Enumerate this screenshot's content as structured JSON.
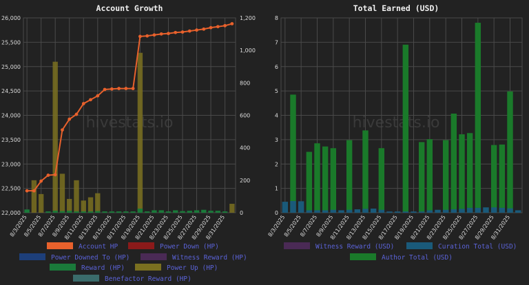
{
  "colors": {
    "account_hp": "#e8612c",
    "power_down": "#8b1a1a",
    "power_downed_to": "#1d3f7a",
    "witness_reward_hp": "#4a2a55",
    "reward": "#1a7a3a",
    "power_up": "#7a7020",
    "benefactor": "#3a6b6b",
    "witness_reward_usd": "#4a2a55",
    "curation_total": "#1a5a7a",
    "author_total": "#1a7a2a"
  },
  "watermark": "hivestats.io",
  "chart_data": [
    {
      "type": "bar",
      "title": "Account Growth",
      "categories": [
        "8/3/2025",
        "8/4/2025",
        "8/5/2025",
        "8/6/2025",
        "8/7/2025",
        "8/8/2025",
        "8/9/2025",
        "8/10/2025",
        "8/11/2025",
        "8/12/2025",
        "8/13/2025",
        "8/14/2025",
        "8/15/2025",
        "8/16/2025",
        "8/17/2025",
        "8/18/2025",
        "8/19/2025",
        "8/20/2025",
        "8/21/2025",
        "8/22/2025",
        "8/23/2025",
        "8/24/2025",
        "8/25/2025",
        "8/26/2025",
        "8/27/2025",
        "8/28/2025",
        "8/29/2025",
        "8/30/2025",
        "8/31/2025",
        "9/1/2025"
      ],
      "x_tick_labels": [
        "8/3/2025",
        "8/5/2025",
        "8/7/2025",
        "8/9/2025",
        "8/11/2025",
        "8/13/2025",
        "8/15/2025",
        "8/17/2025",
        "8/19/2025",
        "8/21/2025",
        "8/23/2025",
        "8/25/2025",
        "8/27/2025",
        "8/29/2025",
        "8/31/2025"
      ],
      "y_left": {
        "min": 22000,
        "max": 26000,
        "ticks": [
          "22,000",
          "22,500",
          "23,000",
          "23,500",
          "24,000",
          "24,500",
          "25,000",
          "25,500",
          "26,000"
        ]
      },
      "y_right": {
        "min": 0,
        "max": 1200,
        "ticks": [
          "0",
          "200",
          "400",
          "600",
          "800",
          "1,000",
          "1,200"
        ]
      },
      "series": [
        {
          "name": "Account HP",
          "kind": "line",
          "axis": "left",
          "values": [
            22450,
            22450,
            22650,
            22770,
            22780,
            23700,
            23920,
            24020,
            24240,
            24320,
            24400,
            24530,
            24540,
            24550,
            24550,
            24550,
            25620,
            25630,
            25650,
            25670,
            25680,
            25700,
            25710,
            25730,
            25750,
            25770,
            25800,
            25820,
            25840,
            25880
          ]
        },
        {
          "name": "Power Up (HP)",
          "kind": "bar",
          "axis": "right",
          "values": [
            0,
            200,
            115,
            0,
            930,
            240,
            85,
            200,
            75,
            95,
            120,
            0,
            0,
            0,
            0,
            0,
            985,
            0,
            0,
            0,
            0,
            0,
            0,
            0,
            0,
            0,
            0,
            0,
            0,
            55
          ]
        },
        {
          "name": "Reward (HP)",
          "kind": "bar",
          "axis": "right",
          "values": [
            20,
            0,
            0,
            8,
            12,
            10,
            12,
            8,
            8,
            8,
            10,
            8,
            8,
            8,
            8,
            8,
            25,
            8,
            15,
            15,
            8,
            15,
            10,
            12,
            15,
            18,
            12,
            12,
            8,
            0
          ]
        }
      ],
      "legend": [
        {
          "label": "Account HP",
          "color_key": "account_hp"
        },
        {
          "label": "Power Down (HP)",
          "color_key": "power_down"
        },
        {
          "label": "Power Downed To (HP)",
          "color_key": "power_downed_to"
        },
        {
          "label": "Witness Reward (HP)",
          "color_key": "witness_reward_hp"
        },
        {
          "label": "Reward (HP)",
          "color_key": "reward"
        },
        {
          "label": "Power Up (HP)",
          "color_key": "power_up"
        },
        {
          "label": "Benefactor Reward (HP)",
          "color_key": "benefactor"
        }
      ],
      "grid": true
    },
    {
      "type": "bar",
      "title": "Total Earned (USD)",
      "categories": [
        "8/3/2025",
        "8/4/2025",
        "8/5/2025",
        "8/6/2025",
        "8/7/2025",
        "8/8/2025",
        "8/9/2025",
        "8/10/2025",
        "8/11/2025",
        "8/12/2025",
        "8/13/2025",
        "8/14/2025",
        "8/15/2025",
        "8/16/2025",
        "8/17/2025",
        "8/18/2025",
        "8/19/2025",
        "8/20/2025",
        "8/21/2025",
        "8/22/2025",
        "8/23/2025",
        "8/24/2025",
        "8/25/2025",
        "8/26/2025",
        "8/27/2025",
        "8/28/2025",
        "8/29/2025",
        "8/30/2025",
        "8/31/2025",
        "9/1/2025"
      ],
      "x_tick_labels": [
        "8/3/2025",
        "8/5/2025",
        "8/7/2025",
        "8/9/2025",
        "8/11/2025",
        "8/13/2025",
        "8/15/2025",
        "8/17/2025",
        "8/19/2025",
        "8/21/2025",
        "8/23/2025",
        "8/25/2025",
        "8/27/2025",
        "8/29/2025",
        "8/31/2025"
      ],
      "y_left": {
        "min": 0,
        "max": 8,
        "ticks": [
          "0",
          "1",
          "2",
          "3",
          "4",
          "5",
          "6",
          "7",
          "8"
        ]
      },
      "series": [
        {
          "name": "Curation Total (USD)",
          "kind": "bar",
          "values": [
            0.45,
            0.48,
            0.47,
            0.1,
            0.1,
            0.1,
            0.12,
            0.1,
            0.12,
            0.14,
            0.16,
            0.17,
            0.12,
            0.05,
            0.05,
            0.05,
            0.05,
            0.05,
            0.1,
            0.12,
            0.12,
            0.14,
            0.16,
            0.2,
            0.2,
            0.22,
            0.22,
            0.2,
            0.18,
            0.1
          ]
        },
        {
          "name": "Author Total (USD)",
          "kind": "bar",
          "values": [
            0,
            4.85,
            0,
            2.5,
            2.85,
            2.72,
            2.65,
            0,
            2.98,
            0,
            3.38,
            0,
            2.65,
            0,
            0,
            6.9,
            0,
            2.9,
            3.02,
            0,
            2.98,
            4.07,
            3.22,
            3.27,
            7.8,
            0,
            2.78,
            2.8,
            4.98,
            0
          ]
        }
      ],
      "legend": [
        {
          "label": "Witness Reward (USD)",
          "color_key": "witness_reward_usd"
        },
        {
          "label": "Curation Total (USD)",
          "color_key": "curation_total"
        },
        {
          "label": "Author Total (USD)",
          "color_key": "author_total"
        }
      ],
      "grid": true
    }
  ]
}
